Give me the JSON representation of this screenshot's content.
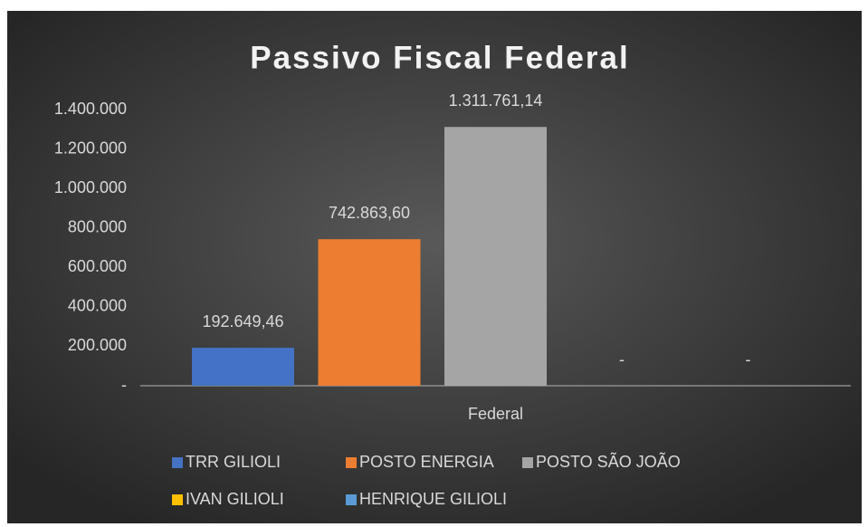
{
  "chart_data": {
    "type": "bar",
    "title": "Passivo Fiscal Federal",
    "categories": [
      "Federal"
    ],
    "series": [
      {
        "name": "TRR GILIOLI",
        "color": "#4472c4",
        "values": [
          192649.46
        ],
        "value_labels": [
          "192.649,46"
        ]
      },
      {
        "name": "POSTO ENERGIA",
        "color": "#ed7d31",
        "values": [
          742863.6
        ],
        "value_labels": [
          "742.863,60"
        ]
      },
      {
        "name": "POSTO SÃO JOÃO",
        "color": "#a5a5a5",
        "values": [
          1311761.14
        ],
        "value_labels": [
          "1.311.761,14"
        ]
      },
      {
        "name": "IVAN GILIOLI",
        "color": "#ffc000",
        "values": [
          0
        ],
        "value_labels": [
          "-"
        ]
      },
      {
        "name": "HENRIQUE GILIOLI",
        "color": "#5b9bd5",
        "values": [
          0
        ],
        "value_labels": [
          "-"
        ]
      }
    ],
    "ylim": [
      0,
      1400000
    ],
    "yticks": [
      {
        "value": 0,
        "label": "-"
      },
      {
        "value": 200000,
        "label": "200.000"
      },
      {
        "value": 400000,
        "label": "400.000"
      },
      {
        "value": 600000,
        "label": "600.000"
      },
      {
        "value": 800000,
        "label": "800.000"
      },
      {
        "value": 1000000,
        "label": "1.000.000"
      },
      {
        "value": 1200000,
        "label": "1.200.000"
      },
      {
        "value": 1400000,
        "label": "1.400.000"
      }
    ],
    "legend": "bottom"
  }
}
